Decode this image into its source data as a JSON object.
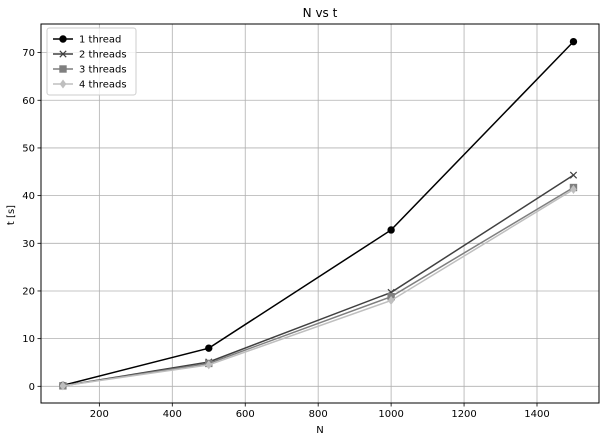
{
  "chart_data": {
    "type": "line",
    "title": "N vs t",
    "xlabel": "N",
    "ylabel": "t [s]",
    "x": [
      100,
      500,
      1000,
      1500
    ],
    "xlim": [
      40,
      1570
    ],
    "ylim": [
      -3.5,
      76
    ],
    "xticks": [
      200,
      400,
      600,
      800,
      1000,
      1200,
      1400
    ],
    "yticks": [
      0,
      10,
      20,
      30,
      40,
      50,
      60,
      70
    ],
    "grid": true,
    "legend_position": "top-left",
    "series": [
      {
        "name": "1 thread",
        "values": [
          0.2,
          8.0,
          32.8,
          72.3
        ],
        "color": "#000000",
        "marker": "circle"
      },
      {
        "name": "2 threads",
        "values": [
          0.1,
          5.1,
          19.7,
          44.3
        ],
        "color": "#404040",
        "marker": "x"
      },
      {
        "name": "3 threads",
        "values": [
          0.1,
          4.8,
          18.8,
          41.7
        ],
        "color": "#7f7f7f",
        "marker": "square"
      },
      {
        "name": "4 threads",
        "values": [
          0.1,
          4.5,
          18.0,
          41.3
        ],
        "color": "#bfbfbf",
        "marker": "diamond"
      }
    ]
  }
}
